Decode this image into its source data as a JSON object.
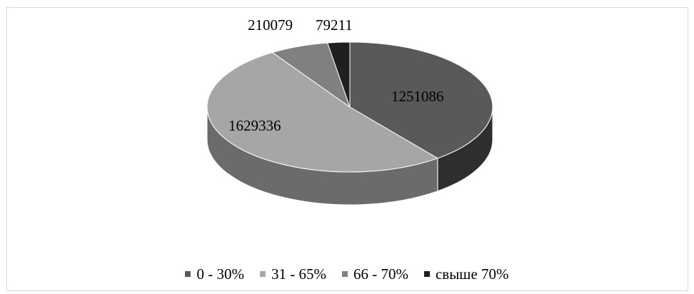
{
  "chart_data": {
    "type": "pie",
    "style": "3d",
    "title": "",
    "categories": [
      "0 - 30%",
      "31 - 65%",
      "66 - 70%",
      "свыше 70%"
    ],
    "values": [
      1251086,
      1629336,
      210079,
      79211
    ],
    "value_labels": [
      "1251086",
      "1629336",
      "210079",
      "79211"
    ],
    "colors": [
      "#595959",
      "#a6a6a6",
      "#808080",
      "#1f1f1f"
    ],
    "side_colors": [
      "#2e2e2e",
      "#6b6b6b",
      "#4a4a4a",
      "#111111"
    ],
    "legend_position": "bottom",
    "start_angle_deg": -90,
    "direction": "clockwise"
  }
}
